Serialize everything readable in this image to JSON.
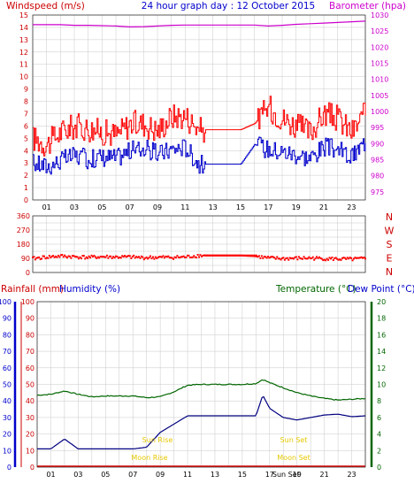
{
  "header": {
    "windspeed_label": "Windspeed (m/s)",
    "title": "24 hour graph day : 12 October 2015",
    "barometer_label": "Barometer (hpa)"
  },
  "rain_hum_header": {
    "rainfall_label": "Rainfall (mm)",
    "humidity_label": "Humidity (%)",
    "temperature_label": "Temperature (°C)",
    "dewpoint_label": "Dew Point (°C)"
  },
  "compass": {
    "labels": [
      "N",
      "W",
      "S",
      "E",
      "N"
    ]
  },
  "events": {
    "sunrise": "Sun Rise",
    "sunset": "Sun Set",
    "moonrise": "Moon Rise",
    "moonset": "Moon Set",
    "bottom_marker": "Sun Set"
  },
  "colors": {
    "gust": "#ff0000",
    "wind": "#0000cc",
    "barometer": "#cc00cc",
    "direction": "#ff0000",
    "humidity": "#000080",
    "temperature": "#006600",
    "dewpoint": "#000080",
    "rainfall": "#cc0000",
    "events": "#e8c800",
    "blue_axis": "#0000cc",
    "red_axis": "#cc0000",
    "green_axis": "#006600",
    "grid": "#c8c8c8"
  },
  "chart_data": [
    {
      "type": "line",
      "name": "wind",
      "x_ticks": [
        "01",
        "03",
        "05",
        "07",
        "09",
        "11",
        "13",
        "15",
        "17",
        "19",
        "21",
        "23"
      ],
      "ylim_left": [
        0,
        15
      ],
      "y_ticks_left": [
        "0",
        "1",
        "2",
        "3",
        "4",
        "5",
        "6",
        "7",
        "8",
        "9",
        "10",
        "11",
        "12",
        "13",
        "14",
        "15"
      ],
      "ylim_right": [
        975,
        1030
      ],
      "y_ticks_right": [
        "975",
        "980",
        "985",
        "990",
        "995",
        "1000",
        "1005",
        "1010",
        "1015",
        "1020",
        "1025",
        "1030"
      ],
      "x_hours": [
        0,
        1,
        2,
        3,
        4,
        5,
        6,
        7,
        8,
        9,
        10,
        11,
        12,
        13,
        14,
        15,
        16,
        17,
        18,
        19,
        20,
        21,
        22,
        23,
        24
      ],
      "gust": [
        5.0,
        4.5,
        5.5,
        6.0,
        5.8,
        5.5,
        5.3,
        6.2,
        6.2,
        5.6,
        6.8,
        6.8,
        5.7,
        5.7,
        5.7,
        5.7,
        6.2,
        7.5,
        6.6,
        6.0,
        5.5,
        7.0,
        6.6,
        5.5,
        7.0
      ],
      "windspeed": [
        3.0,
        2.7,
        3.2,
        3.6,
        3.3,
        3.5,
        3.4,
        4.0,
        4.2,
        3.7,
        4.1,
        4.3,
        2.9,
        2.9,
        2.9,
        2.9,
        4.5,
        4.1,
        3.9,
        3.7,
        3.4,
        4.3,
        4.1,
        3.4,
        4.8
      ],
      "barometer": [
        1027.0,
        1027.0,
        1027.0,
        1026.8,
        1026.8,
        1026.7,
        1026.6,
        1026.3,
        1026.4,
        1026.6,
        1026.8,
        1026.9,
        1026.9,
        1026.9,
        1026.9,
        1026.9,
        1026.9,
        1026.6,
        1026.8,
        1027.1,
        1027.3,
        1027.5,
        1027.7,
        1027.9,
        1028.1
      ],
      "grid": true,
      "legend": "none"
    },
    {
      "type": "scatter",
      "name": "wind_direction",
      "ylim_left": [
        0,
        360
      ],
      "y_ticks_left": [
        "0",
        "45",
        "90",
        "135",
        "180",
        "225",
        "270",
        "315",
        "360"
      ],
      "x_hours": [
        0,
        1,
        2,
        3,
        4,
        5,
        6,
        7,
        8,
        9,
        10,
        11,
        12,
        13,
        14,
        15,
        16,
        17,
        18,
        19,
        20,
        21,
        22,
        23,
        24
      ],
      "direction": [
        88,
        98,
        104,
        100,
        96,
        100,
        98,
        98,
        94,
        96,
        96,
        98,
        108,
        108,
        108,
        108,
        104,
        92,
        88,
        90,
        92,
        88,
        86,
        84,
        88
      ],
      "grid": true,
      "legend": "none"
    },
    {
      "type": "line",
      "name": "rain_humidity_temperature",
      "ylim_left": [
        0,
        100
      ],
      "y_ticks_left": [
        "0",
        "10",
        "20",
        "30",
        "40",
        "50",
        "60",
        "70",
        "80",
        "90",
        "100"
      ],
      "ylim_right": [
        0,
        20
      ],
      "y_ticks_right": [
        "0",
        "2",
        "4",
        "6",
        "8",
        "10",
        "12",
        "14",
        "16",
        "18",
        "20"
      ],
      "x_hours": [
        0,
        1,
        2,
        3,
        4,
        5,
        6,
        7,
        8,
        9,
        10,
        11,
        12,
        13,
        14,
        15,
        16,
        16.5,
        17,
        18,
        19,
        20,
        21,
        22,
        23,
        24
      ],
      "temperature": [
        8.7,
        8.8,
        9.2,
        8.8,
        8.5,
        8.6,
        8.6,
        8.6,
        8.4,
        8.5,
        9.1,
        9.9,
        10.0,
        10.0,
        10.0,
        10.0,
        10.1,
        10.6,
        10.2,
        9.6,
        9.0,
        8.6,
        8.3,
        8.1,
        8.2,
        8.3
      ],
      "dewpoint": [
        2.2,
        2.2,
        3.4,
        2.2,
        2.2,
        2.2,
        2.2,
        2.2,
        2.4,
        4.2,
        5.2,
        6.2,
        6.2,
        6.2,
        6.2,
        6.2,
        6.2,
        8.7,
        7.1,
        6.0,
        5.7,
        6.0,
        6.3,
        6.4,
        6.1,
        6.2
      ],
      "rainfall": [
        0,
        0,
        0,
        0,
        0,
        0,
        0,
        0,
        0,
        0,
        0,
        0,
        0,
        0,
        0,
        0,
        0,
        0,
        0,
        0,
        0,
        0,
        0,
        0,
        0,
        0
      ],
      "grid": true,
      "legend": "none"
    }
  ]
}
